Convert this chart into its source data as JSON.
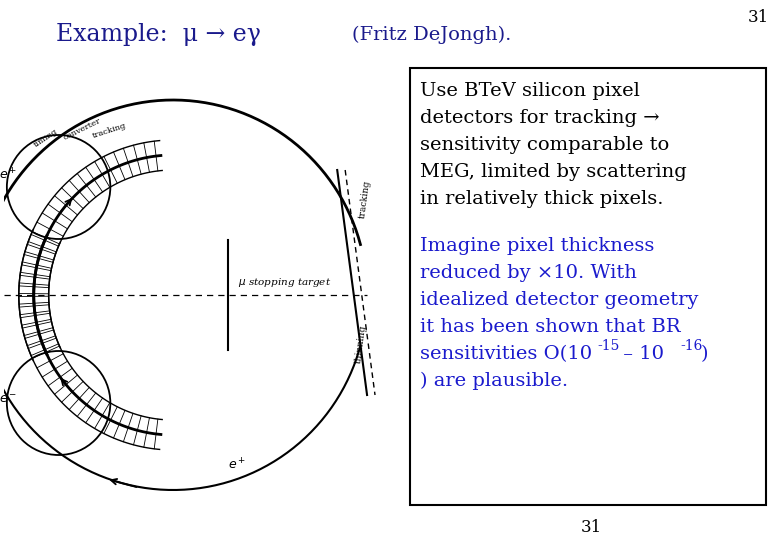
{
  "title_left": "Example:  μ → eγ",
  "title_right": "(Fritz DeJongh).",
  "slide_number_top": "31",
  "slide_number_bottom": "31",
  "black_text_line1": "Use BTeV silicon pixel",
  "black_text_line2": "detectors for tracking →",
  "black_text_line3": "sensitivity comparable to",
  "black_text_line4": "MEG, limited by scattering",
  "black_text_line5": "in relatively thick pixels.",
  "blue_text_line1": "Imagine pixel thickness",
  "blue_text_line2": "reduced by ×10. With",
  "blue_text_line3": "idealized detector geometry",
  "blue_text_line4": "it has been shown that BR",
  "blue_text_line5": "sensitivities O(10",
  "blue_text_sup1": "-15",
  "blue_text_mid": " – 10",
  "blue_text_sup2": "-16",
  "blue_text_line6": ") are plausible.",
  "title_color": "#1a1a8c",
  "subtitle_color": "#1a1a8c",
  "black_text_color": "#000000",
  "blue_text_color": "#1a1acd",
  "background_color": "#ffffff",
  "box_edge_color": "#000000",
  "font_size_title": 17,
  "font_size_text": 14,
  "font_size_slide_num": 12
}
